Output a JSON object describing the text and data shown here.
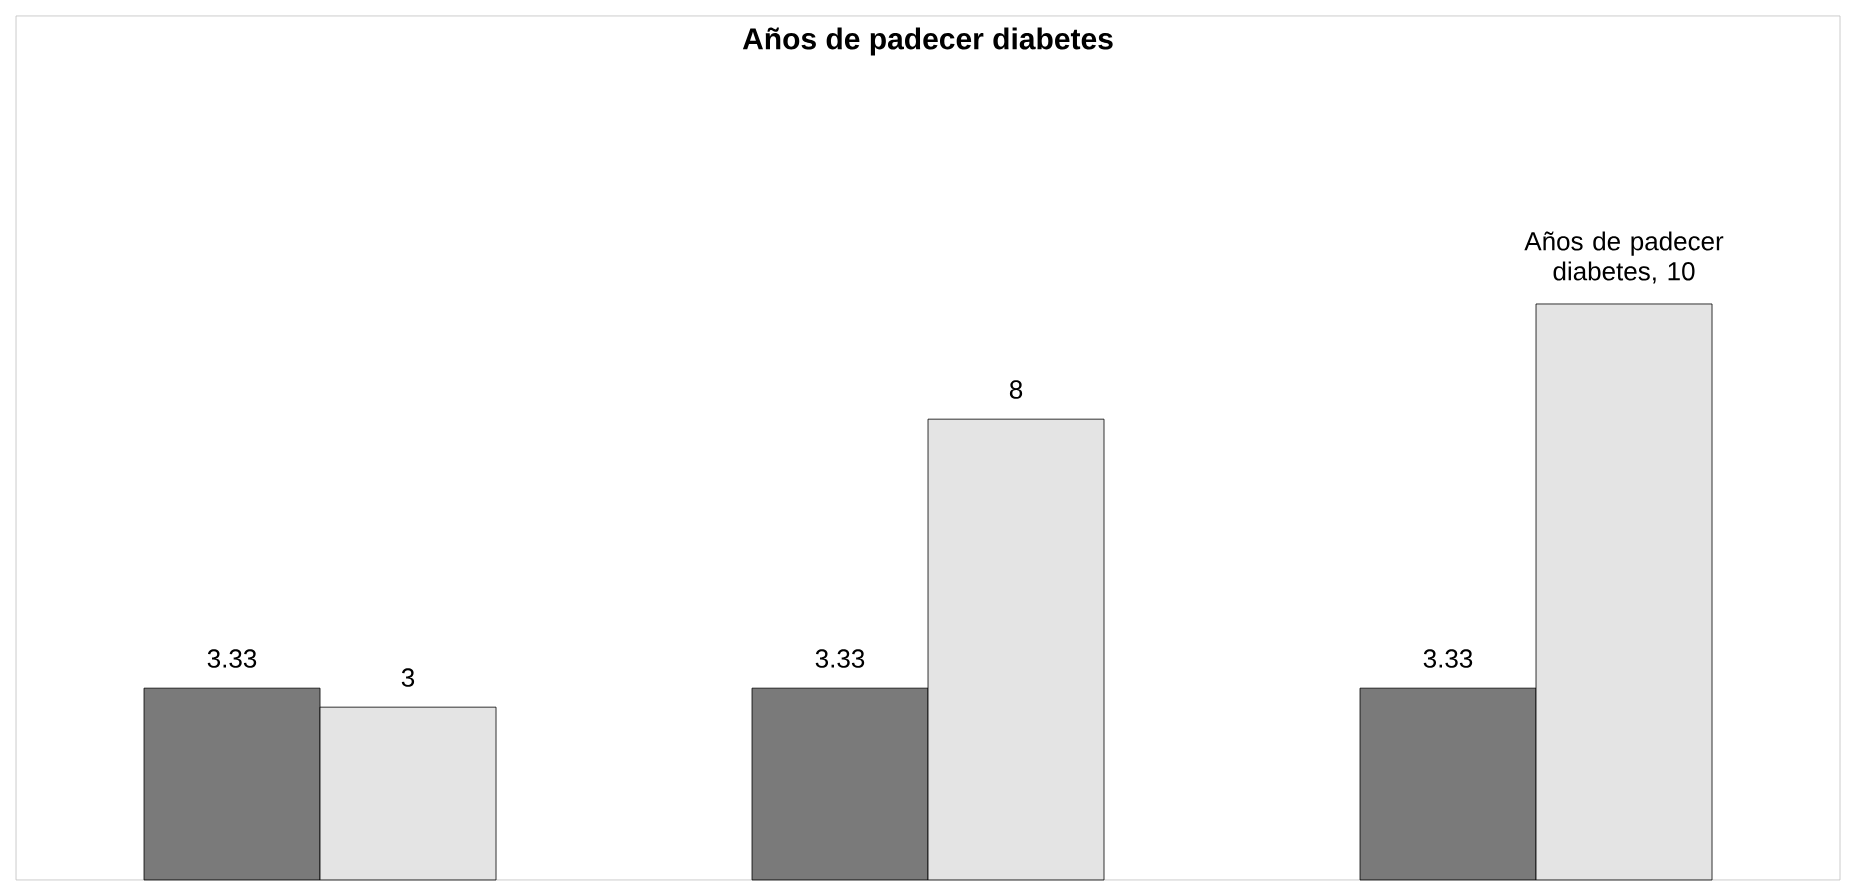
{
  "chart_data": {
    "type": "bar",
    "title": "Años de padecer diabetes",
    "categories": [
      null,
      null,
      null
    ],
    "series": [
      {
        "color": "#7a7a7a",
        "values": [
          3.33,
          3.33,
          3.33
        ],
        "value_labels": [
          "3.33",
          "3.33",
          "3.33"
        ]
      },
      {
        "color": "#e4e4e4",
        "values": [
          3,
          8,
          10
        ],
        "value_labels": [
          "3",
          "8",
          "Años de padecer diabetes, 10"
        ]
      }
    ]
  }
}
